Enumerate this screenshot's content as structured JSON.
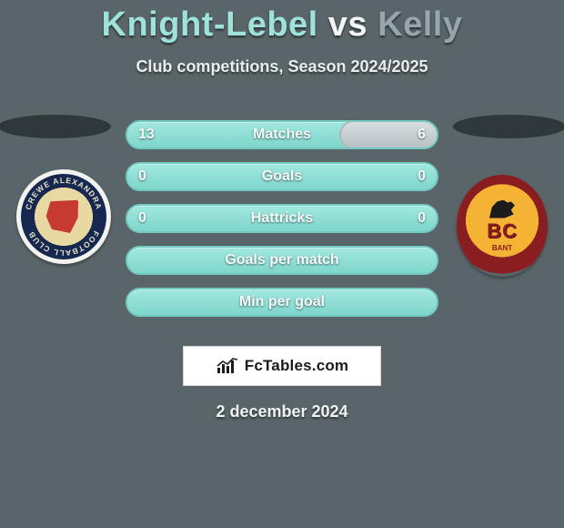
{
  "title": {
    "player1": "Knight-Lebel",
    "vs": "vs",
    "player2": "Kelly",
    "player1_color": "#9fe2db",
    "vs_color": "#f4f6f6",
    "player2_color": "#97a6aa",
    "fontsize": 38
  },
  "subtitle": {
    "text": "Club competitions, Season 2024/2025",
    "fontsize": 18,
    "color": "#e9edee"
  },
  "background_color": "#596569",
  "bar_style": {
    "left_fill_gradient_top": "#a1e8df",
    "left_fill_gradient_bottom": "#7fd6cc",
    "left_border": "#72c9bf",
    "right_fill_gradient_top": "#d8dee0",
    "right_fill_gradient_bottom": "#b9c2c5",
    "right_border": "#aeb8bb",
    "height": 32,
    "radius": 16,
    "label_fontsize": 16,
    "label_color": "#f5f9f9"
  },
  "bars": [
    {
      "label": "Matches",
      "left": "13",
      "right": "6",
      "right_pct": 32
    },
    {
      "label": "Goals",
      "left": "0",
      "right": "0",
      "right_pct": 0
    },
    {
      "label": "Hattricks",
      "left": "0",
      "right": "0",
      "right_pct": 0
    },
    {
      "label": "Goals per match",
      "left": "",
      "right": "",
      "right_pct": 0
    },
    {
      "label": "Min per goal",
      "left": "",
      "right": "",
      "right_pct": 0
    }
  ],
  "brand": {
    "text": "FcTables.com",
    "box_bg": "#ffffff",
    "text_color": "#1b1b1b",
    "icon_color": "#1b1b1b"
  },
  "date": {
    "text": "2 december 2024",
    "fontsize": 18
  },
  "crests": {
    "left_alt": "crewe-alexandra-crest",
    "right_alt": "bradford-city-crest"
  }
}
